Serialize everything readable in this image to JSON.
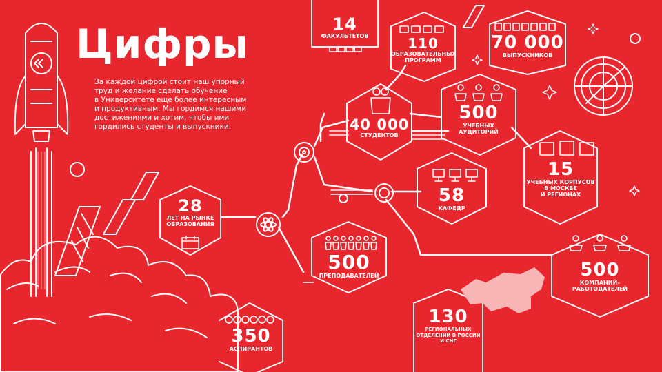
{
  "title": "Цифры",
  "intro": "За каждой цифрой стоит наш упорный\nтруд и желание сделать обучение\nв Университете еще более интересным\nи продуктивным. Мы гордимся нашими\nдостижениями и хотим, чтобы ими\nгордились студенты и выпускники.",
  "colors": {
    "background": "#e8262d",
    "line": "#ffffff"
  },
  "stats": [
    {
      "id": "faculties",
      "value": "14",
      "caption": "ФАКУЛЬТЕТОВ"
    },
    {
      "id": "programs",
      "value": "110",
      "caption": "ОБРАЗОВАТЕЛЬНЫХ\nПРОГРАММ"
    },
    {
      "id": "graduates",
      "value": "70 000",
      "caption": "ВЫПУСКНИКОВ"
    },
    {
      "id": "students",
      "value": "40 000",
      "caption": "СТУДЕНТОВ"
    },
    {
      "id": "classrooms",
      "value": "500",
      "caption": "УЧЕБНЫХ\nАУДИТОРИЙ"
    },
    {
      "id": "buildings",
      "value": "15",
      "caption": "УЧЕБНЫХ КОРПУСОВ\nВ МОСКВЕ\nИ РЕГИОНАХ"
    },
    {
      "id": "years",
      "value": "28",
      "caption": "ЛЕТ НА РЫНКЕ\nОБРАЗОВАНИЯ"
    },
    {
      "id": "departments",
      "value": "58",
      "caption": "КАФЕДР"
    },
    {
      "id": "teachers",
      "value": "500",
      "caption": "ПРЕПОДАВАТЕЛЕЙ"
    },
    {
      "id": "employers",
      "value": "500",
      "caption": "КОМПАНИЙ–\nРАБОТОДАТЕЛЕЙ"
    },
    {
      "id": "branches",
      "value": "130",
      "caption": "РЕГИОНАЛЬНЫХ\nОТДЕЛЕНИЙ В РОССИИ\nИ СНГ"
    },
    {
      "id": "postgrads",
      "value": "350",
      "caption": "АСПИРАНТОВ"
    }
  ],
  "icons": [
    "rocket-icon",
    "atom-icon",
    "gear-icon",
    "people-icon",
    "desk-icon",
    "building-icon",
    "computer-icon",
    "calendar-icon",
    "apple-icon",
    "russia-map-icon",
    "radar-icon",
    "books-icon",
    "diploma-icon",
    "star-icon",
    "planet-icon",
    "cloud-icon"
  ]
}
